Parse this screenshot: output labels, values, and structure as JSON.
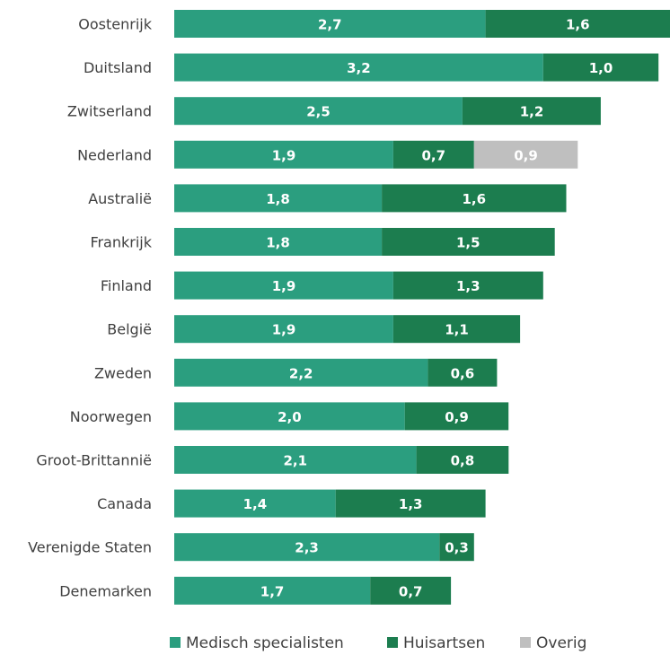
{
  "chart_data": {
    "type": "bar",
    "orientation": "horizontal",
    "stacked": true,
    "categories": [
      "Oostenrijk",
      "Duitsland",
      "Zwitserland",
      "Nederland",
      "Australië",
      "Frankrijk",
      "Finland",
      "België",
      "Zweden",
      "Noorwegen",
      "Groot-Brittannië",
      "Canada",
      "Verenigde Staten",
      "Denemarken"
    ],
    "series": [
      {
        "name": "Medisch specialisten",
        "color": "#2b9e7f",
        "values": [
          2.7,
          3.2,
          2.5,
          1.9,
          1.8,
          1.8,
          1.9,
          1.9,
          2.2,
          2.0,
          2.1,
          1.4,
          2.3,
          1.7
        ],
        "labels": [
          "2,7",
          "3,2",
          "2,5",
          "1,9",
          "1,8",
          "1,8",
          "1,9",
          "1,9",
          "2,2",
          "2,0",
          "2,1",
          "1,4",
          "2,3",
          "1,7"
        ]
      },
      {
        "name": "Huisartsen",
        "color": "#1c7d4f",
        "values": [
          1.6,
          1.0,
          1.2,
          0.7,
          1.6,
          1.5,
          1.3,
          1.1,
          0.6,
          0.9,
          0.8,
          1.3,
          0.3,
          0.7
        ],
        "labels": [
          "1,6",
          "1,0",
          "1,2",
          "0,7",
          "1,6",
          "1,5",
          "1,3",
          "1,1",
          "0,6",
          "0,9",
          "0,8",
          "1,3",
          "0,3",
          "0,7"
        ]
      },
      {
        "name": "Overig",
        "color": "#bfbfbf",
        "values": [
          0,
          0,
          0,
          0.9,
          0,
          0,
          0,
          0,
          0,
          0,
          0,
          0,
          0,
          0
        ],
        "labels": [
          "",
          "",
          "",
          "0,9",
          "",
          "",
          "",
          "",
          "",
          "",
          "",
          "",
          "",
          ""
        ]
      }
    ],
    "xlim": [
      0,
      4.3
    ],
    "legend_position": "bottom",
    "grid": false
  }
}
